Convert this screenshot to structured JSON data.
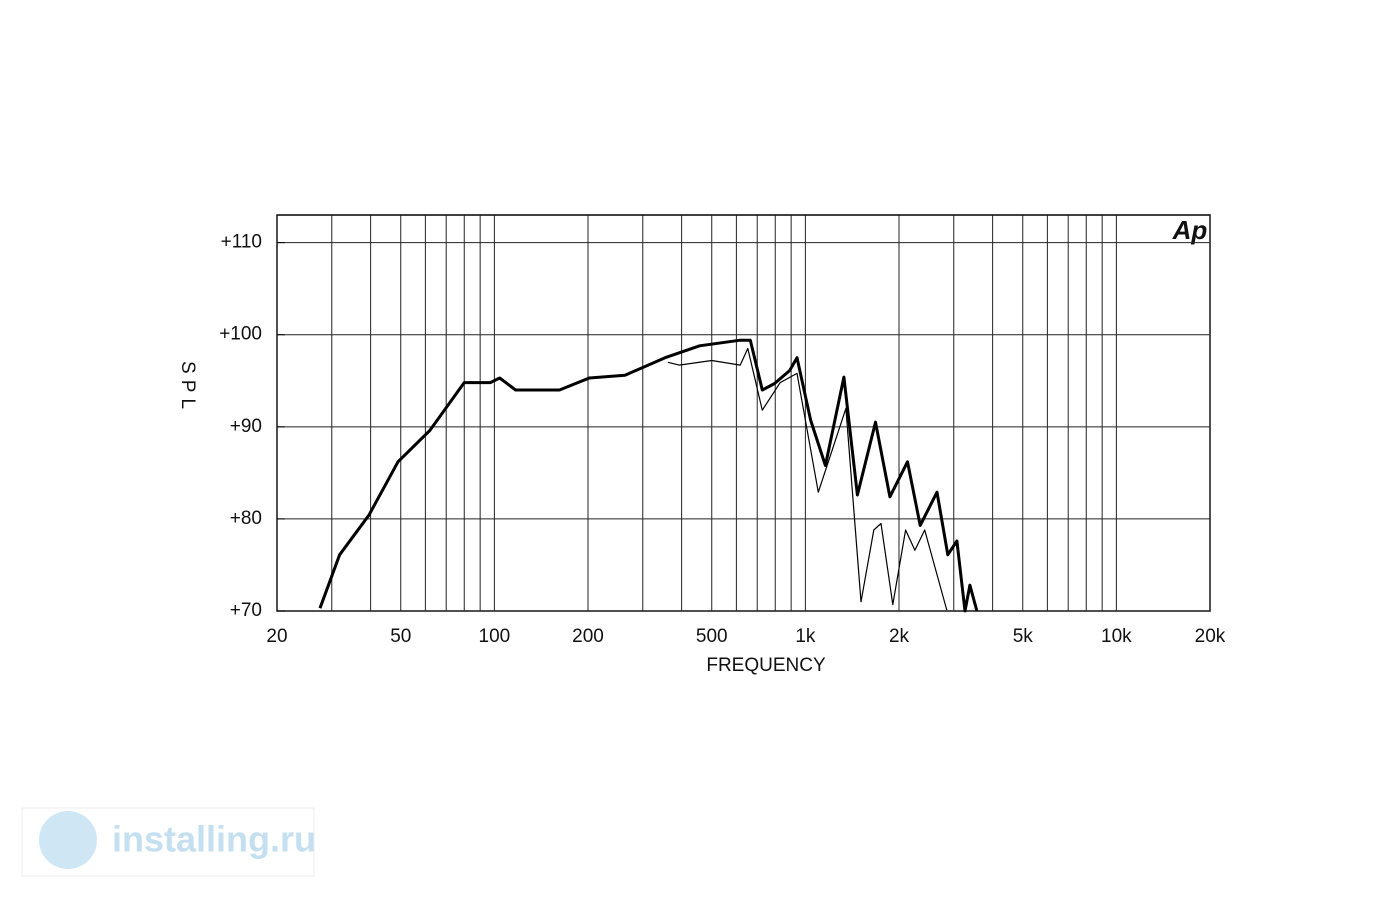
{
  "chart_data": {
    "type": "line",
    "title": null,
    "xlabel": "FREQUENCY",
    "ylabel": "SPL",
    "logo": "Ap",
    "watermark": "installing.ru",
    "xscale": "log",
    "grid": true,
    "xlim": [
      20,
      20000
    ],
    "ylim": [
      70,
      113
    ],
    "xticks": [
      20,
      50,
      100,
      200,
      500,
      {
        "value": 1000,
        "label": "1k"
      },
      {
        "value": 2000,
        "label": "2k"
      },
      {
        "value": 5000,
        "label": "5k"
      },
      {
        "value": 10000,
        "label": "10k"
      },
      {
        "value": 20000,
        "label": "20k"
      }
    ],
    "xgrid": [
      30,
      40,
      60,
      70,
      80,
      90,
      300,
      400,
      600,
      700,
      800,
      900,
      3000,
      4000,
      6000,
      7000,
      8000,
      9000
    ],
    "yticks": [
      {
        "value": 70,
        "label": "+70"
      },
      {
        "value": 80,
        "label": "+80"
      },
      {
        "value": 90,
        "label": "+90"
      },
      {
        "value": 100,
        "label": "+100"
      },
      {
        "value": 110,
        "label": "+110"
      }
    ],
    "series": [
      {
        "color": "#000000",
        "width": 3,
        "x": [
          27.5,
          31.8,
          39.5,
          49,
          62,
          80,
          97,
          104,
          117,
          162,
          202,
          263,
          354,
          457,
          617,
          665,
          727,
          796,
          890,
          940,
          1040,
          1160,
          1330,
          1470,
          1680,
          1870,
          2130,
          2340,
          2650,
          2870,
          3070,
          3260,
          3380,
          3560
        ],
        "values": [
          70.3,
          76.1,
          80.4,
          86.2,
          89.6,
          94.8,
          94.8,
          95.3,
          94.0,
          94.0,
          95.3,
          95.6,
          97.5,
          98.8,
          99.4,
          99.4,
          94.0,
          94.7,
          96.1,
          97.5,
          90.7,
          85.8,
          95.4,
          82.6,
          90.5,
          82.4,
          86.2,
          79.3,
          82.9,
          76.1,
          77.6,
          70.0,
          72.8,
          70.0
        ]
      },
      {
        "color": "#000000",
        "width": 1.2,
        "x": [
          361,
          393,
          500,
          617,
          653,
          727,
          830,
          940,
          1100,
          1350,
          1510,
          1660,
          1750,
          1910,
          2100,
          2250,
          2420,
          2850
        ],
        "values": [
          97.0,
          96.7,
          97.2,
          96.7,
          98.5,
          91.8,
          94.8,
          95.8,
          82.9,
          92.0,
          71.0,
          78.8,
          79.5,
          70.7,
          78.8,
          76.6,
          78.8,
          70.1
        ]
      }
    ]
  }
}
